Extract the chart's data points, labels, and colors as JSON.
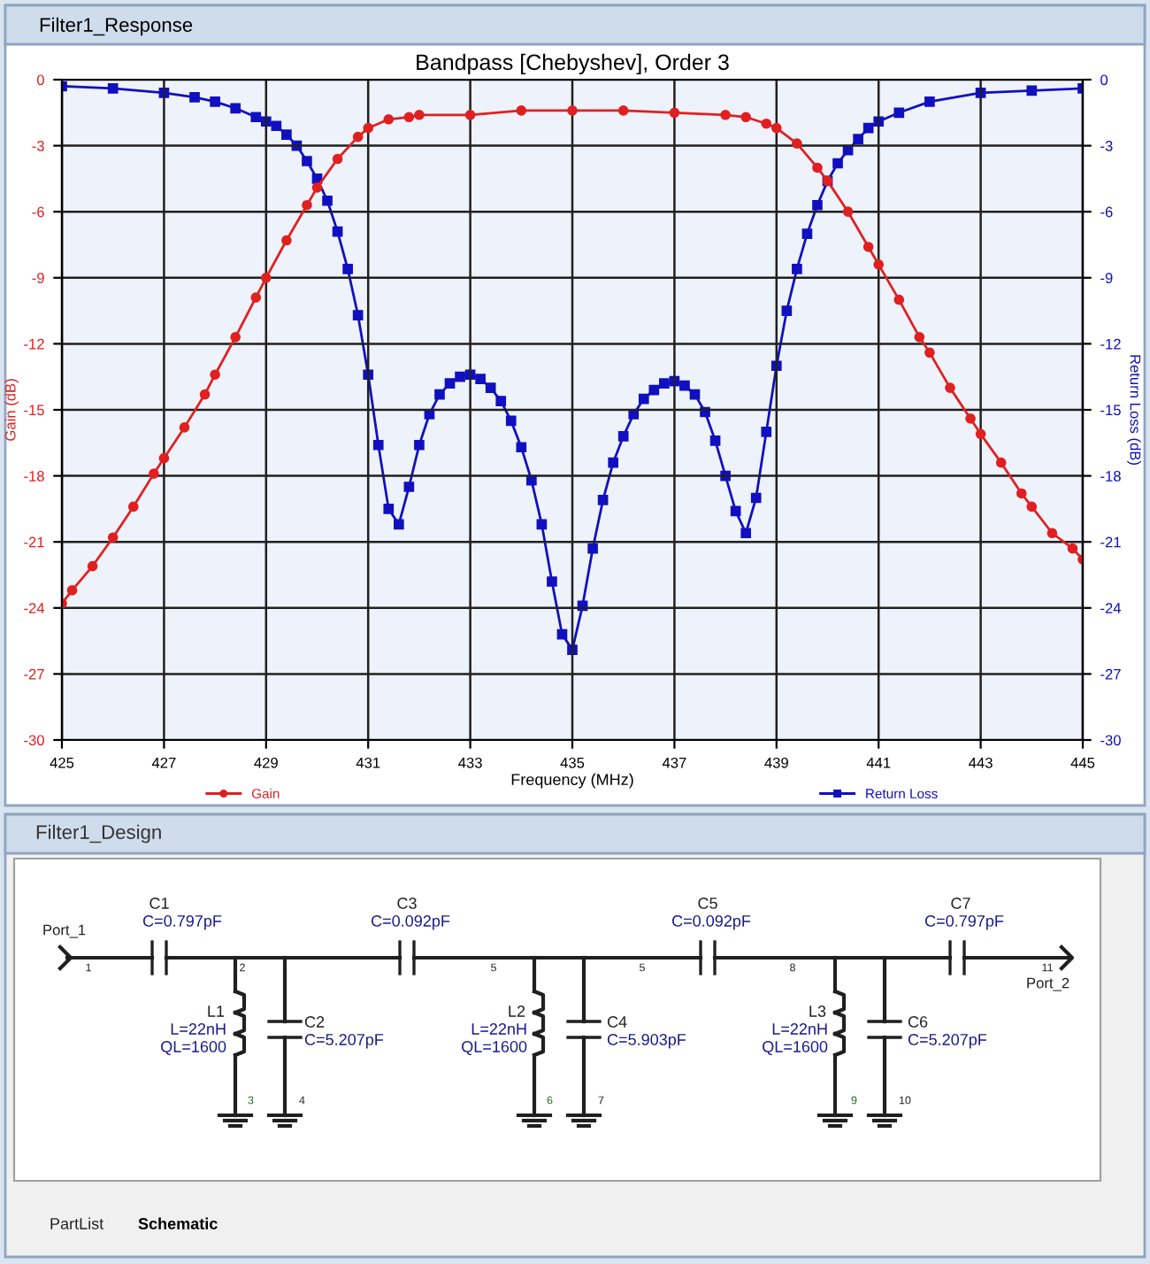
{
  "chart_data": [
    {
      "type": "line",
      "title": "Bandpass [Chebyshev], Order 3",
      "xlabel": "Frequency (MHz)",
      "ylabel": "Gain (dB)",
      "y2label": "Return Loss (dB)",
      "annotations": [
        "Filter1_Response"
      ],
      "xlim": [
        425,
        445
      ],
      "xticks": [
        425,
        427,
        429,
        431,
        433,
        435,
        437,
        439,
        441,
        443,
        445
      ],
      "ylim": [
        -30,
        0
      ],
      "yticks": [
        0,
        -3,
        -6,
        -9,
        -12,
        -15,
        -18,
        -21,
        -24,
        -27,
        -30
      ],
      "y2lim": [
        -30,
        0
      ],
      "y2ticks": [
        0,
        -3,
        -6,
        -9,
        -12,
        -15,
        -18,
        -21,
        -24,
        -27,
        -30
      ],
      "grid": true,
      "legend": "bottom",
      "series": [
        {
          "name": "Gain",
          "color": "#e02020",
          "marker": "circle",
          "x": [
            425,
            425.2,
            425.6,
            426,
            426.4,
            426.8,
            427,
            427.4,
            427.8,
            428,
            428.4,
            428.8,
            429,
            429.4,
            429.8,
            430,
            430.4,
            430.8,
            431,
            431.4,
            431.8,
            432,
            433,
            434,
            435,
            436,
            437,
            438,
            438.4,
            438.8,
            439,
            439.4,
            439.8,
            440,
            440.4,
            440.8,
            441,
            441.4,
            441.8,
            442,
            442.4,
            442.8,
            443,
            443.4,
            443.8,
            444,
            444.4,
            444.8,
            445
          ],
          "values": [
            -23.8,
            -23.2,
            -22.1,
            -20.8,
            -19.4,
            -17.9,
            -17.2,
            -15.8,
            -14.3,
            -13.4,
            -11.7,
            -9.9,
            -9.0,
            -7.3,
            -5.7,
            -4.9,
            -3.6,
            -2.6,
            -2.2,
            -1.8,
            -1.7,
            -1.6,
            -1.6,
            -1.4,
            -1.4,
            -1.4,
            -1.5,
            -1.6,
            -1.7,
            -2.0,
            -2.2,
            -2.9,
            -4.0,
            -4.6,
            -6.0,
            -7.6,
            -8.4,
            -10.0,
            -11.7,
            -12.4,
            -14.0,
            -15.4,
            -16.1,
            -17.4,
            -18.8,
            -19.4,
            -20.6,
            -21.3,
            -21.8
          ]
        },
        {
          "name": "Return Loss",
          "color": "#1010c0",
          "marker": "square",
          "axis": "y2",
          "x": [
            425,
            426,
            427,
            427.6,
            428,
            428.4,
            428.8,
            429,
            429.2,
            429.4,
            429.6,
            429.8,
            430,
            430.2,
            430.4,
            430.6,
            430.8,
            431,
            431.2,
            431.4,
            431.6,
            431.8,
            432,
            432.2,
            432.4,
            432.6,
            432.8,
            433,
            433.2,
            433.4,
            433.6,
            433.8,
            434,
            434.2,
            434.4,
            434.6,
            434.8,
            435,
            435.2,
            435.4,
            435.6,
            435.8,
            436,
            436.2,
            436.4,
            436.6,
            436.8,
            437,
            437.2,
            437.4,
            437.6,
            437.8,
            438,
            438.2,
            438.4,
            438.6,
            438.8,
            439,
            439.2,
            439.4,
            439.6,
            439.8,
            440,
            440.2,
            440.4,
            440.6,
            440.8,
            441,
            441.4,
            442,
            443,
            444,
            445
          ],
          "values": [
            -0.3,
            -0.4,
            -0.6,
            -0.8,
            -1.0,
            -1.3,
            -1.7,
            -1.9,
            -2.1,
            -2.5,
            -3.0,
            -3.7,
            -4.5,
            -5.5,
            -6.9,
            -8.6,
            -10.7,
            -13.4,
            -16.6,
            -19.5,
            -20.2,
            -18.5,
            -16.6,
            -15.2,
            -14.3,
            -13.8,
            -13.5,
            -13.4,
            -13.6,
            -14.0,
            -14.6,
            -15.5,
            -16.7,
            -18.2,
            -20.2,
            -22.8,
            -25.2,
            -25.9,
            -23.9,
            -21.3,
            -19.1,
            -17.4,
            -16.2,
            -15.2,
            -14.5,
            -14.1,
            -13.8,
            -13.7,
            -13.9,
            -14.3,
            -15.1,
            -16.4,
            -18.0,
            -19.6,
            -20.6,
            -19.0,
            -16.0,
            -13.0,
            -10.5,
            -8.6,
            -7.0,
            -5.7,
            -4.6,
            -3.8,
            -3.2,
            -2.7,
            -2.2,
            -1.9,
            -1.5,
            -1.0,
            -0.6,
            -0.5,
            -0.4
          ]
        }
      ]
    },
    {
      "type": "other",
      "title": "Filter1_Design",
      "annotations": [
        "Port_1",
        "1",
        "C1",
        "C=0.797pF",
        "2",
        "C3",
        "C=0.092pF",
        "5",
        "5",
        "C5",
        "C=0.092pF",
        "8",
        "C7",
        "C=0.797pF",
        "11",
        "Port_2",
        "L1",
        "L=22nH",
        "QL=1600",
        "C2",
        "C=5.207pF",
        "3",
        "4",
        "L2",
        "L=22nH",
        "QL=1600",
        "C4",
        "C=5.903pF",
        "6",
        "7",
        "L3",
        "L=22nH",
        "QL=1600",
        "C6",
        "C=5.207pF",
        "9",
        "10",
        "PartList",
        "Schematic"
      ]
    }
  ]
}
